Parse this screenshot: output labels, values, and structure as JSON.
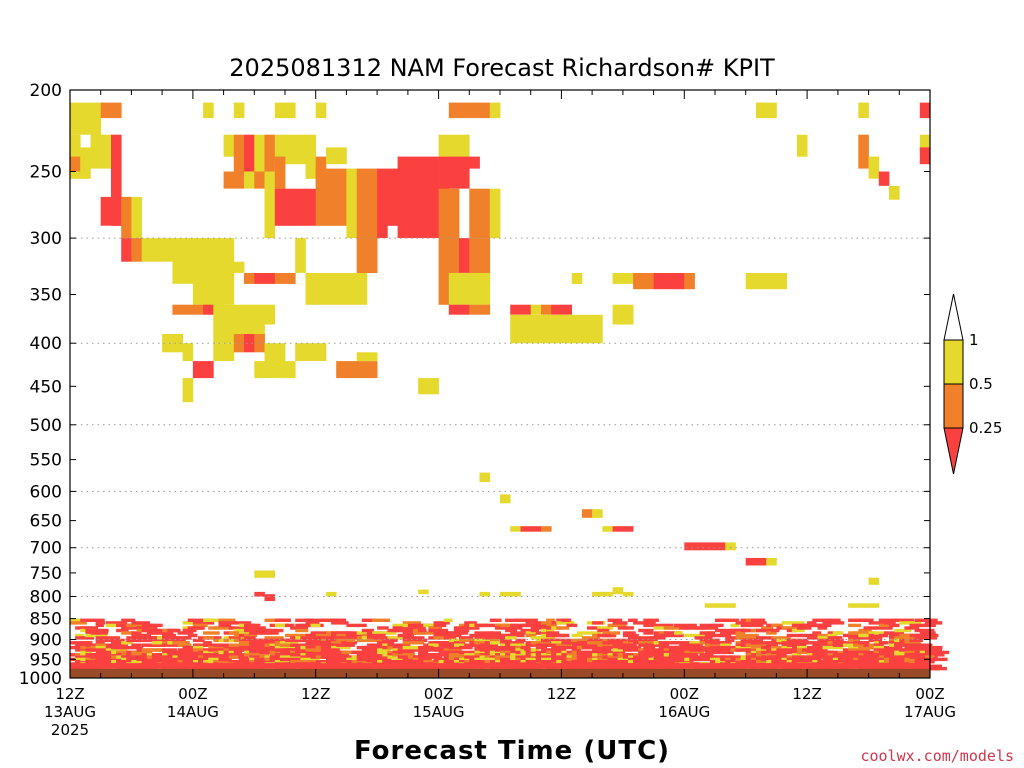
{
  "chart_data": {
    "type": "heatmap",
    "title": "2025081312 NAM Forecast Richardson# KPIT",
    "xlabel": "Forecast Time (UTC)",
    "ylabel": "",
    "x_unit": "hours from 2025-08-13 12Z",
    "xlim": [
      0,
      84
    ],
    "ylim": [
      1000,
      200
    ],
    "y_scale": "log-pressure",
    "y_ticks": [
      200,
      250,
      300,
      350,
      400,
      450,
      500,
      550,
      600,
      650,
      700,
      750,
      800,
      850,
      900,
      950,
      1000
    ],
    "y_gridlines": [
      300,
      400,
      500,
      600,
      700,
      800,
      900
    ],
    "x_ticks": [
      {
        "x": 0,
        "line1": "12Z",
        "line2": "13AUG",
        "line3": "2025"
      },
      {
        "x": 12,
        "line1": "00Z",
        "line2": "14AUG",
        "line3": ""
      },
      {
        "x": 24,
        "line1": "12Z",
        "line2": "",
        "line3": ""
      },
      {
        "x": 36,
        "line1": "00Z",
        "line2": "15AUG",
        "line3": ""
      },
      {
        "x": 48,
        "line1": "12Z",
        "line2": "",
        "line3": ""
      },
      {
        "x": 60,
        "line1": "00Z",
        "line2": "16AUG",
        "line3": ""
      },
      {
        "x": 72,
        "line1": "12Z",
        "line2": "",
        "line3": ""
      },
      {
        "x": 84,
        "line1": "00Z",
        "line2": "17AUG",
        "line3": ""
      }
    ],
    "legend": {
      "placement": "right",
      "labels": [
        "1",
        "0.5",
        "0.25"
      ],
      "bins": [
        {
          "range": [
            0.5,
            1
          ],
          "color": "#e5d92e"
        },
        {
          "range": [
            0.25,
            0.5
          ],
          "color": "#f0802a"
        },
        {
          "range": [
            0,
            0.25
          ],
          "color": "#fb4040"
        }
      ]
    },
    "colors": {
      "yellow": "#e5d92e",
      "orange": "#f0802a",
      "red": "#fb4040",
      "ground": "#9a4a26"
    },
    "ground_pressure": 975,
    "cells": [
      [
        0,
        0,
        207,
        226
      ],
      [
        1,
        0,
        207,
        226
      ],
      [
        2,
        0,
        207,
        234
      ],
      [
        3,
        1,
        207,
        216
      ],
      [
        4,
        1,
        207,
        216
      ],
      [
        13,
        0,
        207,
        216
      ],
      [
        16,
        0,
        207,
        216
      ],
      [
        20,
        0,
        207,
        216
      ],
      [
        21,
        0,
        207,
        216
      ],
      [
        24,
        0,
        207,
        216
      ],
      [
        37,
        1,
        207,
        216
      ],
      [
        38,
        1,
        207,
        216
      ],
      [
        39,
        1,
        207,
        216
      ],
      [
        40,
        1,
        207,
        216
      ],
      [
        41,
        0,
        207,
        216
      ],
      [
        67,
        0,
        207,
        216
      ],
      [
        68,
        0,
        207,
        216
      ],
      [
        77,
        0,
        207,
        216
      ],
      [
        83,
        2,
        207,
        216
      ],
      [
        0,
        0,
        226,
        255
      ],
      [
        0,
        1,
        240,
        250
      ],
      [
        1,
        0,
        234,
        255
      ],
      [
        2,
        0,
        226,
        248
      ],
      [
        3,
        0,
        226,
        248
      ],
      [
        4,
        2,
        226,
        290
      ],
      [
        15,
        0,
        226,
        240
      ],
      [
        16,
        1,
        226,
        250
      ],
      [
        17,
        2,
        226,
        250
      ],
      [
        18,
        0,
        226,
        260
      ],
      [
        19,
        1,
        226,
        255
      ],
      [
        20,
        0,
        226,
        270
      ],
      [
        21,
        0,
        226,
        245
      ],
      [
        22,
        0,
        226,
        245
      ],
      [
        23,
        0,
        226,
        255
      ],
      [
        24,
        1,
        240,
        260
      ],
      [
        25,
        0,
        234,
        245
      ],
      [
        26,
        0,
        234,
        245
      ],
      [
        36,
        0,
        226,
        240
      ],
      [
        37,
        0,
        226,
        245
      ],
      [
        38,
        0,
        226,
        245
      ],
      [
        39,
        2,
        240,
        248
      ],
      [
        71,
        0,
        226,
        240
      ],
      [
        77,
        1,
        226,
        248
      ],
      [
        78,
        0,
        240,
        255
      ],
      [
        79,
        2,
        250,
        260
      ],
      [
        80,
        0,
        260,
        270
      ],
      [
        83,
        0,
        226,
        238
      ],
      [
        83,
        2,
        234,
        245
      ],
      [
        3,
        2,
        268,
        290
      ],
      [
        4,
        2,
        268,
        290
      ],
      [
        5,
        1,
        268,
        300
      ],
      [
        6,
        0,
        268,
        300
      ],
      [
        15,
        1,
        250,
        262
      ],
      [
        16,
        1,
        250,
        262
      ],
      [
        17,
        0,
        250,
        262
      ],
      [
        18,
        1,
        250,
        262
      ],
      [
        19,
        0,
        250,
        300
      ],
      [
        20,
        1,
        240,
        262
      ],
      [
        20,
        2,
        262,
        290
      ],
      [
        21,
        2,
        262,
        290
      ],
      [
        22,
        2,
        262,
        290
      ],
      [
        23,
        2,
        262,
        290
      ],
      [
        24,
        1,
        248,
        290
      ],
      [
        25,
        1,
        248,
        290
      ],
      [
        26,
        1,
        248,
        290
      ],
      [
        27,
        0,
        248,
        300
      ],
      [
        28,
        1,
        248,
        330
      ],
      [
        29,
        1,
        248,
        330
      ],
      [
        30,
        2,
        248,
        300
      ],
      [
        31,
        2,
        248,
        290
      ],
      [
        32,
        2,
        240,
        300
      ],
      [
        33,
        2,
        240,
        300
      ],
      [
        34,
        2,
        240,
        300
      ],
      [
        35,
        2,
        240,
        300
      ],
      [
        36,
        2,
        240,
        300
      ],
      [
        37,
        2,
        240,
        262
      ],
      [
        38,
        2,
        240,
        262
      ],
      [
        39,
        1,
        262,
        300
      ],
      [
        40,
        1,
        262,
        300
      ],
      [
        41,
        0,
        262,
        300
      ],
      [
        36,
        1,
        262,
        330
      ],
      [
        37,
        1,
        262,
        330
      ],
      [
        38,
        2,
        300,
        330
      ],
      [
        39,
        1,
        300,
        345
      ],
      [
        40,
        1,
        300,
        340
      ],
      [
        5,
        2,
        300,
        320
      ],
      [
        6,
        1,
        300,
        320
      ],
      [
        7,
        0,
        300,
        320
      ],
      [
        8,
        0,
        300,
        320
      ],
      [
        9,
        0,
        300,
        320
      ],
      [
        10,
        0,
        300,
        340
      ],
      [
        11,
        0,
        300,
        340
      ],
      [
        12,
        0,
        300,
        360
      ],
      [
        13,
        0,
        300,
        370
      ],
      [
        14,
        0,
        300,
        370
      ],
      [
        15,
        0,
        300,
        360
      ],
      [
        16,
        0,
        320,
        330
      ],
      [
        17,
        1,
        330,
        340
      ],
      [
        18,
        2,
        330,
        340
      ],
      [
        19,
        2,
        330,
        340
      ],
      [
        20,
        1,
        330,
        340
      ],
      [
        21,
        1,
        330,
        340
      ],
      [
        22,
        0,
        300,
        330
      ],
      [
        23,
        0,
        330,
        360
      ],
      [
        24,
        0,
        330,
        360
      ],
      [
        25,
        0,
        330,
        360
      ],
      [
        26,
        0,
        330,
        360
      ],
      [
        27,
        0,
        330,
        360
      ],
      [
        28,
        0,
        330,
        360
      ],
      [
        36,
        1,
        330,
        360
      ],
      [
        37,
        0,
        330,
        360
      ],
      [
        38,
        0,
        330,
        360
      ],
      [
        39,
        0,
        330,
        360
      ],
      [
        40,
        0,
        330,
        360
      ],
      [
        37,
        2,
        360,
        370
      ],
      [
        38,
        2,
        360,
        370
      ],
      [
        39,
        1,
        360,
        370
      ],
      [
        40,
        1,
        360,
        370
      ],
      [
        43,
        2,
        360,
        370
      ],
      [
        44,
        2,
        360,
        370
      ],
      [
        45,
        0,
        360,
        370
      ],
      [
        46,
        1,
        360,
        370
      ],
      [
        47,
        2,
        360,
        370
      ],
      [
        48,
        2,
        360,
        370
      ],
      [
        49,
        0,
        330,
        340
      ],
      [
        53,
        0,
        330,
        340
      ],
      [
        54,
        0,
        330,
        340
      ],
      [
        55,
        1,
        330,
        345
      ],
      [
        56,
        1,
        330,
        345
      ],
      [
        57,
        2,
        330,
        345
      ],
      [
        58,
        2,
        330,
        345
      ],
      [
        59,
        2,
        330,
        345
      ],
      [
        60,
        1,
        330,
        345
      ],
      [
        66,
        0,
        330,
        345
      ],
      [
        67,
        0,
        330,
        345
      ],
      [
        68,
        0,
        330,
        345
      ],
      [
        69,
        0,
        330,
        345
      ],
      [
        10,
        1,
        360,
        370
      ],
      [
        11,
        1,
        360,
        370
      ],
      [
        12,
        1,
        360,
        370
      ],
      [
        13,
        2,
        360,
        370
      ],
      [
        14,
        0,
        360,
        400
      ],
      [
        15,
        0,
        360,
        400
      ],
      [
        16,
        0,
        360,
        400
      ],
      [
        17,
        0,
        360,
        400
      ],
      [
        18,
        0,
        360,
        400
      ],
      [
        19,
        0,
        360,
        380
      ],
      [
        43,
        0,
        370,
        400
      ],
      [
        44,
        0,
        370,
        400
      ],
      [
        45,
        0,
        370,
        400
      ],
      [
        46,
        0,
        370,
        400
      ],
      [
        47,
        0,
        370,
        400
      ],
      [
        48,
        0,
        370,
        400
      ],
      [
        49,
        0,
        370,
        400
      ],
      [
        50,
        0,
        370,
        400
      ],
      [
        51,
        0,
        370,
        400
      ],
      [
        53,
        0,
        360,
        380
      ],
      [
        54,
        0,
        360,
        380
      ],
      [
        9,
        0,
        390,
        410
      ],
      [
        10,
        0,
        390,
        410
      ],
      [
        11,
        0,
        400,
        420
      ],
      [
        14,
        0,
        400,
        420
      ],
      [
        15,
        0,
        400,
        420
      ],
      [
        16,
        1,
        390,
        410
      ],
      [
        17,
        2,
        390,
        410
      ],
      [
        18,
        1,
        390,
        410
      ],
      [
        19,
        0,
        400,
        440
      ],
      [
        20,
        0,
        400,
        440
      ],
      [
        22,
        0,
        400,
        420
      ],
      [
        23,
        0,
        400,
        420
      ],
      [
        24,
        0,
        400,
        420
      ],
      [
        26,
        1,
        420,
        440
      ],
      [
        27,
        1,
        420,
        440
      ],
      [
        28,
        1,
        420,
        440
      ],
      [
        29,
        1,
        420,
        440
      ],
      [
        11,
        0,
        440,
        470
      ],
      [
        12,
        2,
        420,
        440
      ],
      [
        13,
        2,
        420,
        440
      ],
      [
        18,
        0,
        420,
        440
      ],
      [
        20,
        0,
        420,
        440
      ],
      [
        21,
        0,
        420,
        440
      ],
      [
        28,
        0,
        410,
        420
      ],
      [
        29,
        0,
        410,
        420
      ],
      [
        34,
        0,
        440,
        460
      ],
      [
        35,
        0,
        440,
        460
      ],
      [
        40,
        0,
        570,
        585
      ],
      [
        42,
        0,
        605,
        620
      ],
      [
        43,
        0,
        660,
        670
      ],
      [
        44,
        2,
        660,
        670
      ],
      [
        45,
        2,
        660,
        670
      ],
      [
        46,
        1,
        660,
        670
      ],
      [
        50,
        1,
        630,
        645
      ],
      [
        51,
        0,
        630,
        645
      ],
      [
        52,
        0,
        660,
        670
      ],
      [
        53,
        2,
        660,
        670
      ],
      [
        54,
        2,
        660,
        670
      ],
      [
        60,
        2,
        690,
        705
      ],
      [
        61,
        2,
        690,
        705
      ],
      [
        62,
        2,
        690,
        705
      ],
      [
        63,
        2,
        690,
        705
      ],
      [
        64,
        0,
        690,
        705
      ],
      [
        66,
        2,
        720,
        735
      ],
      [
        67,
        2,
        720,
        735
      ],
      [
        68,
        0,
        720,
        735
      ],
      [
        78,
        0,
        760,
        775
      ],
      [
        18,
        0,
        745,
        760
      ],
      [
        19,
        0,
        745,
        760
      ],
      [
        18,
        2,
        790,
        800
      ],
      [
        19,
        2,
        795,
        810
      ],
      [
        25,
        0,
        790,
        800
      ],
      [
        34,
        0,
        785,
        795
      ],
      [
        40,
        0,
        790,
        800
      ],
      [
        42,
        0,
        790,
        800
      ],
      [
        43,
        0,
        790,
        800
      ],
      [
        51,
        0,
        790,
        800
      ],
      [
        52,
        0,
        790,
        800
      ],
      [
        53,
        0,
        780,
        795
      ],
      [
        54,
        0,
        790,
        800
      ],
      [
        62,
        0,
        815,
        825
      ],
      [
        63,
        0,
        815,
        825
      ],
      [
        64,
        0,
        815,
        825
      ],
      [
        76,
        0,
        815,
        825
      ],
      [
        77,
        0,
        815,
        825
      ],
      [
        78,
        0,
        815,
        825
      ]
    ],
    "boundary_layer": {
      "x_range": [
        0,
        84
      ],
      "p_range": [
        850,
        975
      ],
      "mix": [
        "red",
        "orange",
        "yellow"
      ]
    }
  },
  "watermark": "coolwx.com/models"
}
